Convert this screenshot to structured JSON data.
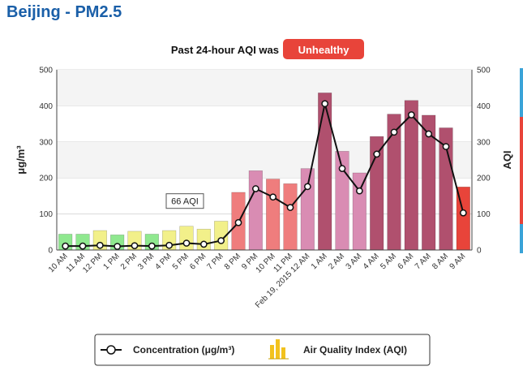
{
  "page": {
    "title": "Beijing - PM2.5",
    "strip_colors": [
      "#3aa3d8",
      "#e8443a",
      "#3aa3d8"
    ]
  },
  "chart_data": {
    "type": "bar",
    "subtitle_prefix": "Past 24-hour AQI was",
    "status_label": "Unhealthy",
    "status_color": "#e8443a",
    "ylabel_left": "μg/m³",
    "ylabel_right": "AQI",
    "ylim": [
      0,
      500
    ],
    "yticks": [
      0,
      100,
      200,
      300,
      400,
      500
    ],
    "grid": true,
    "categories": [
      "10 AM",
      "11 AM",
      "12 PM",
      "1 PM",
      "2 PM",
      "3 PM",
      "4 PM",
      "5 PM",
      "6 PM",
      "7 PM",
      "8 PM",
      "9 PM",
      "10 PM",
      "11 PM",
      "Feb 19, 2015 12 AM",
      "1 AM",
      "2 AM",
      "3 AM",
      "4 AM",
      "5 AM",
      "6 AM",
      "7 AM",
      "8 AM",
      "9 AM"
    ],
    "series": [
      {
        "name": "Air Quality Index (AQI)",
        "kind": "bar",
        "values": [
          44,
          44,
          54,
          42,
          52,
          44,
          54,
          66,
          58,
          80,
          160,
          220,
          197,
          184,
          226,
          436,
          274,
          214,
          315,
          377,
          415,
          374,
          339,
          175
        ],
        "colors": [
          "#8fe88f",
          "#8fe88f",
          "#f2f08a",
          "#8fe88f",
          "#f2f08a",
          "#8fe88f",
          "#f2f08a",
          "#f2f08a",
          "#f2f08a",
          "#f2f08a",
          "#ef7d7d",
          "#d98cb3",
          "#ef7d7d",
          "#ef7d7d",
          "#d98cb3",
          "#b0506e",
          "#d98cb3",
          "#d98cb3",
          "#b0506e",
          "#b0506e",
          "#b0506e",
          "#b0506e",
          "#b0506e",
          "#e8443a"
        ]
      },
      {
        "name": "Concentration (μg/m³)",
        "kind": "line",
        "values": [
          11,
          11,
          13,
          10,
          12,
          11,
          13,
          19,
          16,
          26,
          76,
          170,
          147,
          118,
          176,
          406,
          226,
          164,
          266,
          327,
          375,
          322,
          287,
          103
        ]
      }
    ],
    "annotation": {
      "label": "66 AQI",
      "category_index": 7
    }
  }
}
